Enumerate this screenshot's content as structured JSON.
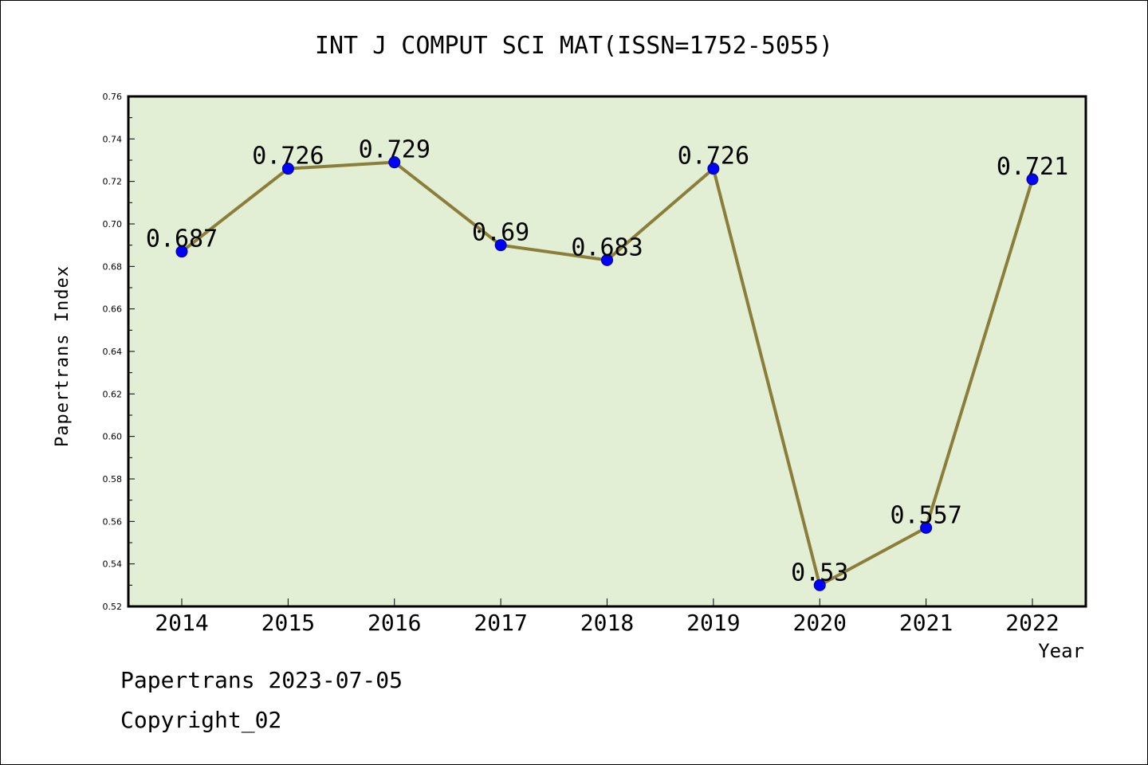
{
  "colors": {
    "plot_bg": "#e2efd4",
    "line": "#8b7e3a",
    "marker": "#0000ff",
    "axis": "#000000"
  },
  "chart_data": {
    "type": "line",
    "title": "INT J COMPUT SCI MAT(ISSN=1752-5055)",
    "xlabel": "Year",
    "ylabel": "Papertrans Index",
    "categories": [
      "2014",
      "2015",
      "2016",
      "2017",
      "2018",
      "2019",
      "2020",
      "2021",
      "2022"
    ],
    "series": [
      {
        "values": [
          0.687,
          0.726,
          0.729,
          0.69,
          0.683,
          0.726,
          0.53,
          0.557,
          0.721
        ]
      }
    ],
    "data_labels": [
      "0.687",
      "0.726",
      "0.729",
      "0.69",
      "0.683",
      "0.726",
      "0.53",
      "0.557",
      "0.721"
    ],
    "ylim": [
      0.52,
      0.76
    ],
    "yticks": [
      "0.52",
      "0.54",
      "0.56",
      "0.58",
      "0.60",
      "0.62",
      "0.64",
      "0.66",
      "0.68",
      "0.70",
      "0.72",
      "0.74",
      "0.76"
    ],
    "grid": false,
    "legend": "none"
  },
  "footer": {
    "line1": "Papertrans 2023-07-05",
    "line2": "Copyright_02"
  }
}
